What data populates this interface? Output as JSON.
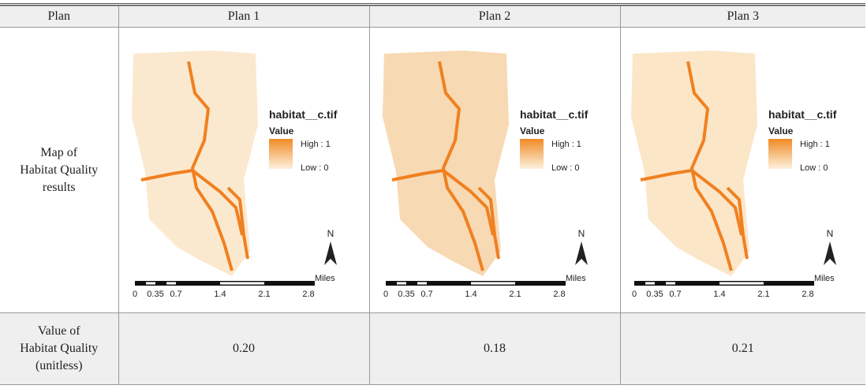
{
  "table": {
    "header": [
      "Plan",
      "Plan 1",
      "Plan 2",
      "Plan 3"
    ],
    "rows": [
      {
        "label": [
          "Map of",
          "Habitat Quality",
          "results"
        ],
        "maps": [
          {
            "legend_title": "habitat__c.tif",
            "legend_subtitle": "Value",
            "high": "High : 1",
            "low": "Low : 0",
            "scale_labels": [
              "0",
              "0.35",
              "0.7",
              "1.4",
              "2.1",
              "2.8"
            ],
            "scale_unit": "Miles",
            "north": "N"
          },
          {
            "legend_title": "habitat__c.tif",
            "legend_subtitle": "Value",
            "high": "High : 1",
            "low": "Low : 0",
            "scale_labels": [
              "0",
              "0.35",
              "0.7",
              "1.4",
              "2.1",
              "2.8"
            ],
            "scale_unit": "Miles",
            "north": "N"
          },
          {
            "legend_title": "habitat__c.tif",
            "legend_subtitle": "Value",
            "high": "High : 1",
            "low": "Low : 0",
            "scale_labels": [
              "0",
              "0.35",
              "0.7",
              "1.4",
              "2.1",
              "2.8"
            ],
            "scale_unit": "Miles",
            "north": "N"
          }
        ]
      },
      {
        "label": [
          "Value of",
          "Habitat Quality",
          "(unitless)"
        ],
        "values": [
          "0.20",
          "0.18",
          "0.21"
        ]
      }
    ]
  }
}
